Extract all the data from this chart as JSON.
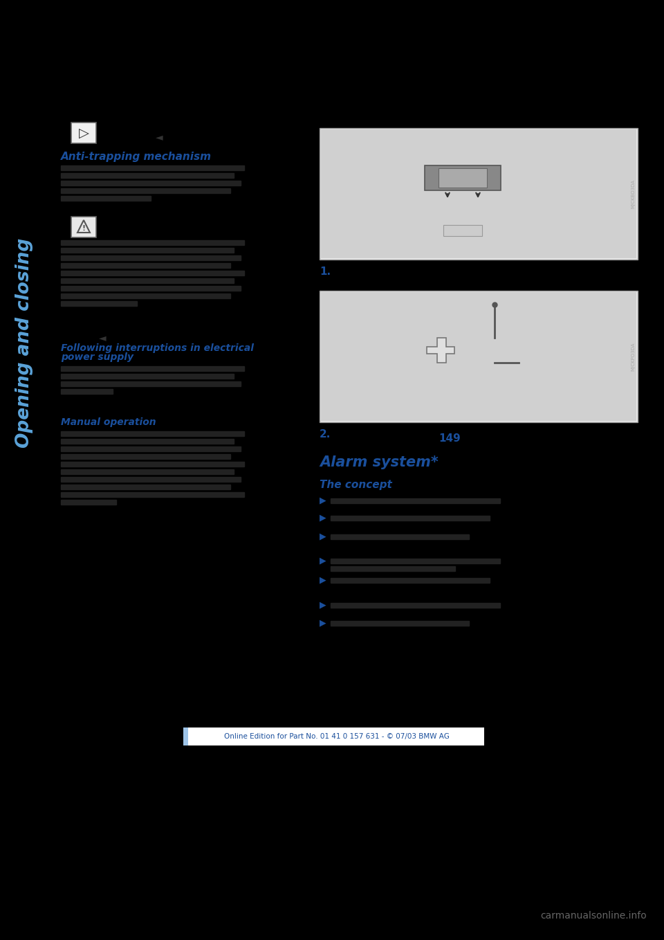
{
  "bg_color": "#000000",
  "content_bg": "#000000",
  "blue_color": "#1a4f9c",
  "light_blue": "#5ba3d9",
  "sidebar_text": "Opening and closing",
  "sidebar_color": "#5ba3d9",
  "footer_text": "Online Edition for Part No. 01 41 0 157 631 - © 07/03 BMW AG",
  "footer_bg": "#ffffff",
  "footer_border_color": "#a8c8e8",
  "watermark": "carmanualsonline.info",
  "heading_anti_trapping": "Anti-trapping mechanism",
  "heading_following_1": "Following interruptions in electrical",
  "heading_following_2": "power supply",
  "heading_manual": "Manual operation",
  "heading_alarm": "Alarm system*",
  "heading_concept": "The concept",
  "bullet": "▶",
  "page_ref": "149",
  "label_1": "1.",
  "label_2": "2.",
  "img_bg": "#e8e8e8",
  "img_border": "#999999",
  "img_inner": "#d0d0d0"
}
